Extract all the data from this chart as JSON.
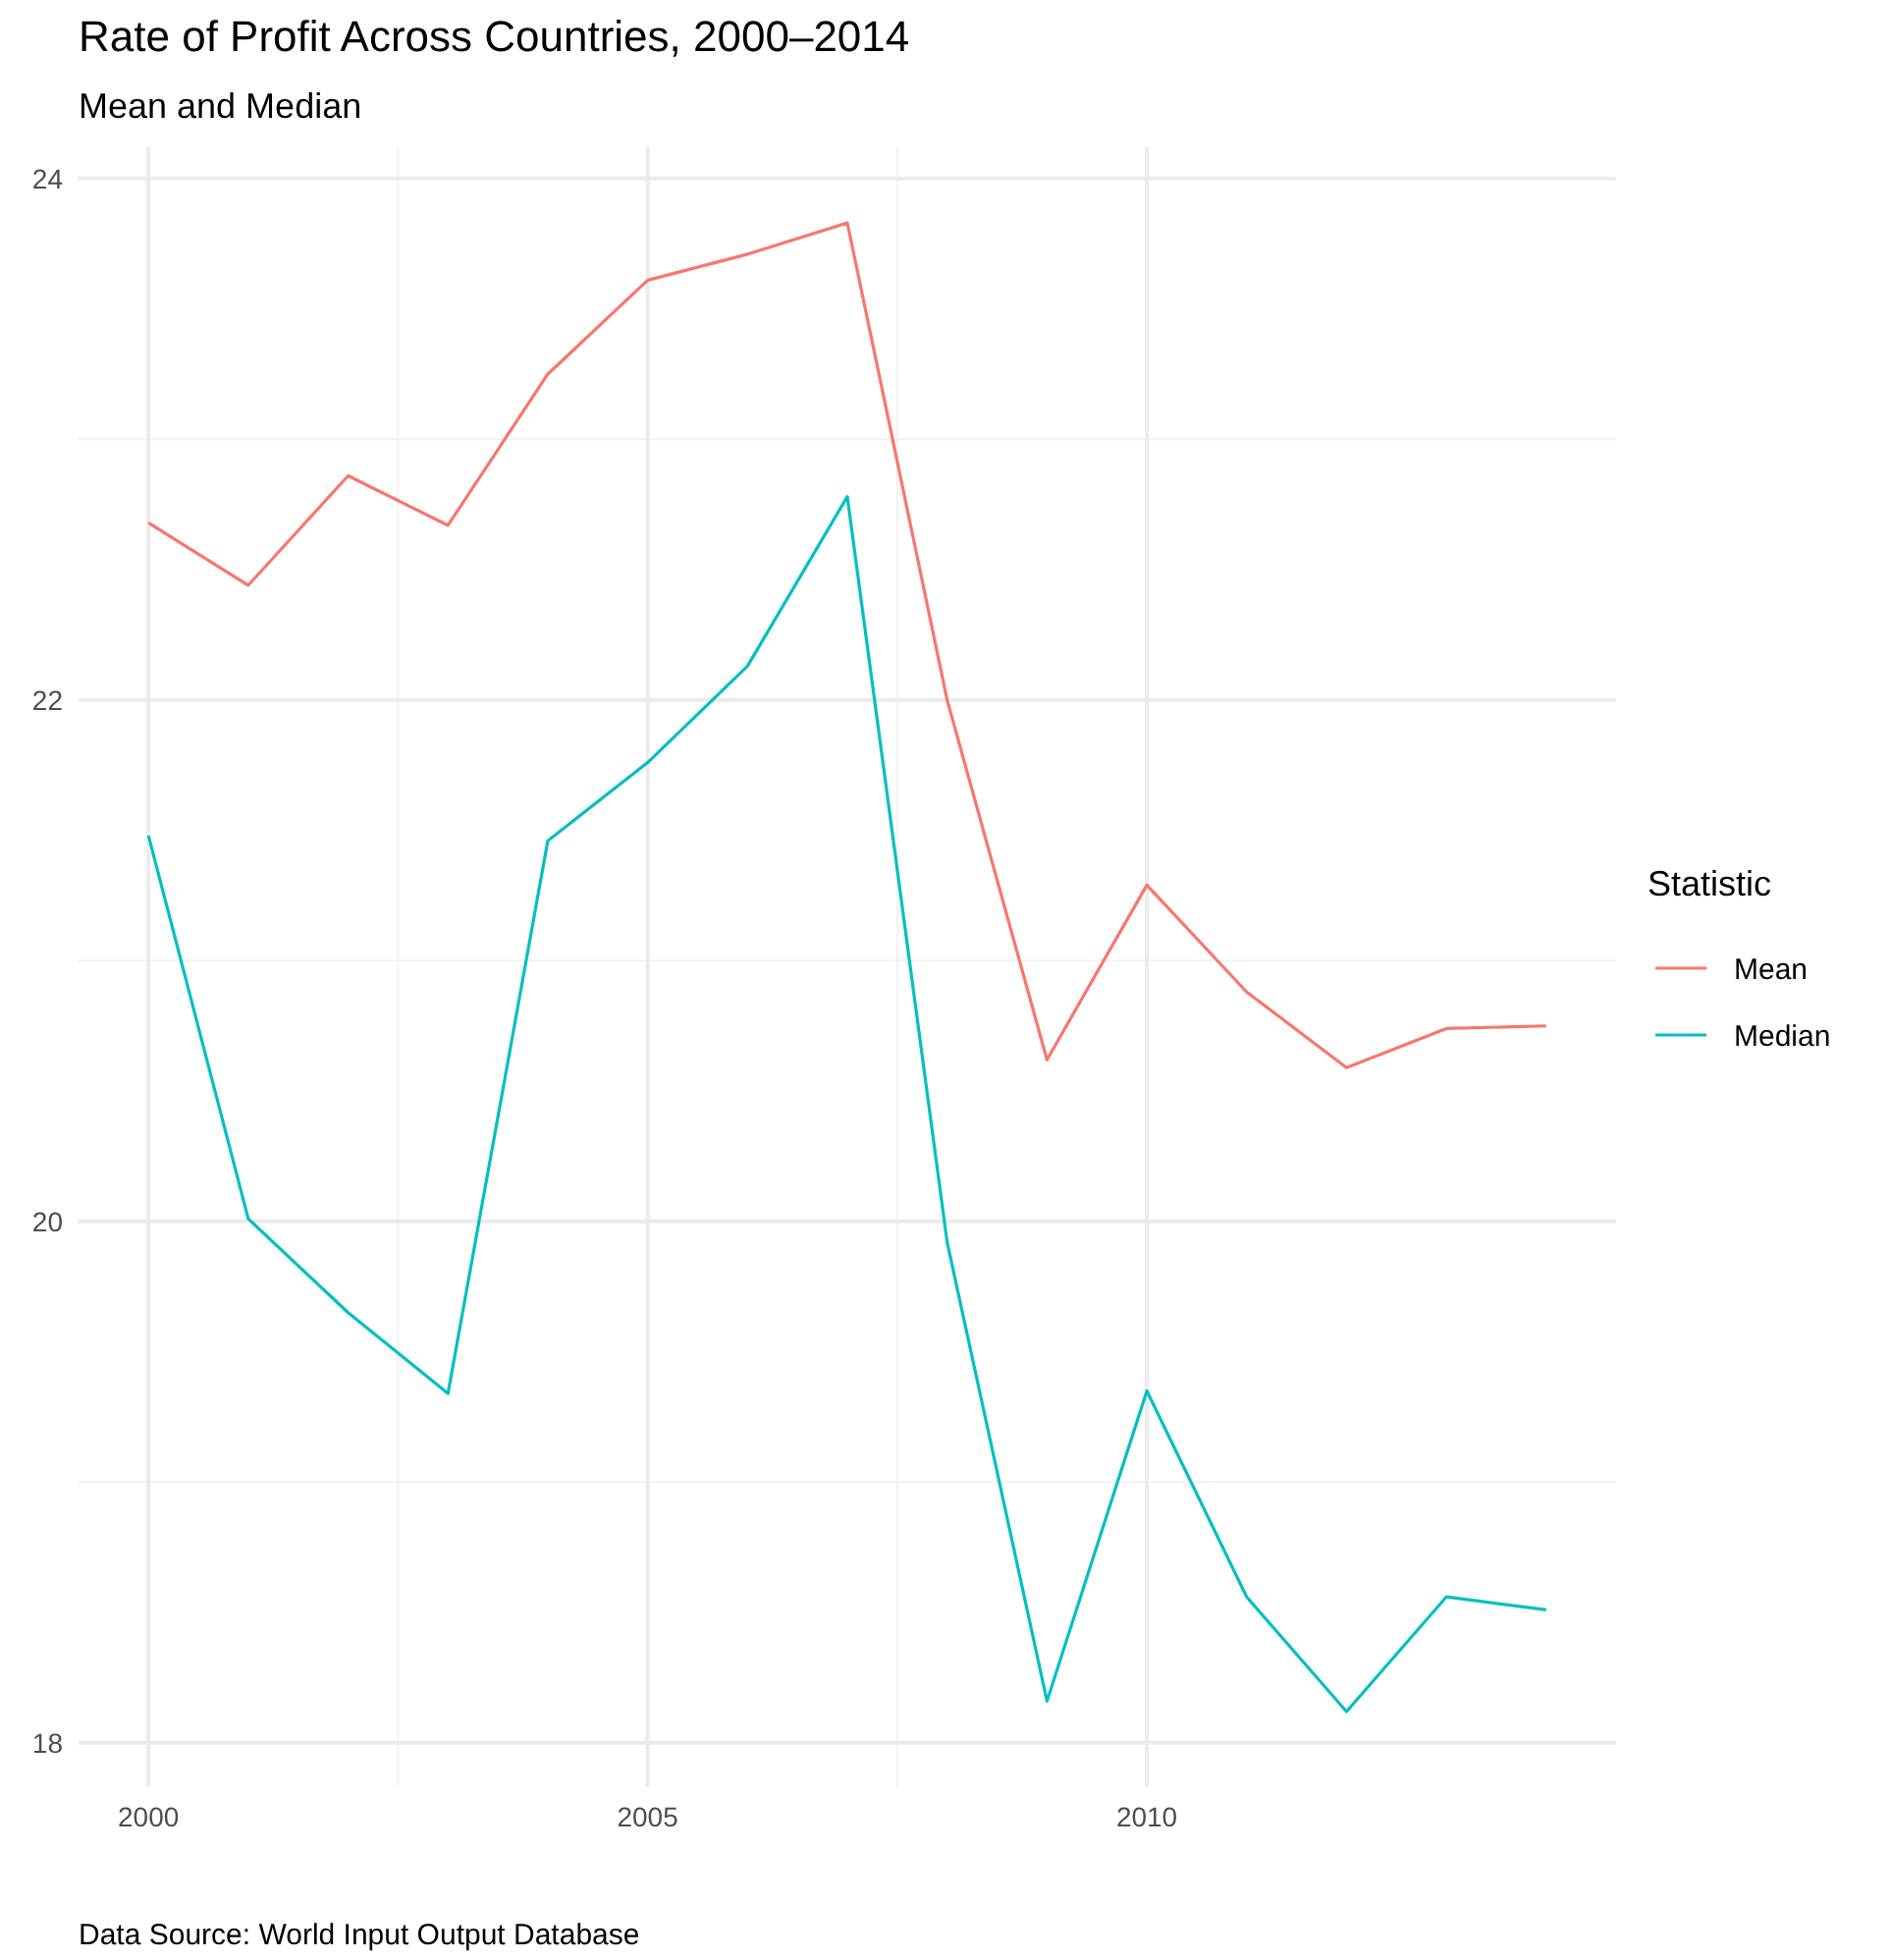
{
  "chart_data": {
    "type": "line",
    "title": "Rate of Profit Across Countries, 2000–2014",
    "subtitle": "Mean and Median",
    "legend_title": "Statistic",
    "annotations": [
      "Data Source: World Input Output Database"
    ],
    "x": [
      2000,
      2001,
      2002,
      2003,
      2004,
      2005,
      2006,
      2007,
      2008,
      2009,
      2010,
      2011,
      2012,
      2013,
      2014
    ],
    "series": [
      {
        "name": "Mean",
        "color": "#f8766d",
        "values": [
          22.68,
          22.44,
          22.86,
          22.67,
          23.25,
          23.61,
          23.71,
          23.83,
          22.0,
          20.62,
          21.29,
          20.88,
          20.59,
          20.74,
          20.75
        ]
      },
      {
        "name": "Median",
        "color": "#00bfc4",
        "values": [
          21.48,
          20.01,
          19.65,
          19.34,
          21.46,
          21.76,
          22.13,
          22.78,
          19.92,
          18.16,
          19.35,
          18.56,
          18.12,
          18.56,
          18.51
        ]
      }
    ],
    "xlim": [
      1999.3,
      2014.7
    ],
    "xticks": [
      2000,
      2005,
      2010
    ],
    "ylim": [
      17.83,
      24.12
    ],
    "yticks": [
      18,
      20,
      22,
      24
    ],
    "grid": true,
    "legend": "right",
    "line_style": "solid"
  }
}
